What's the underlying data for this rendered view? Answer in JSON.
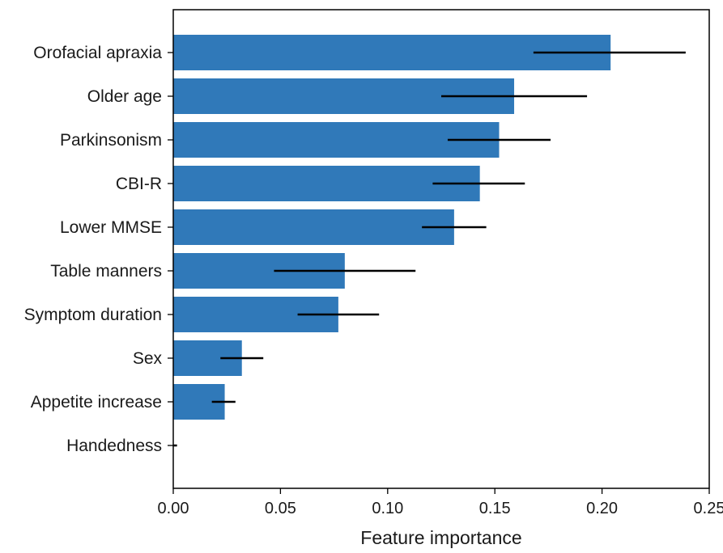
{
  "chart_data": {
    "type": "bar",
    "orientation": "horizontal",
    "title": "",
    "xlabel": "Feature importance",
    "ylabel": "",
    "xlim": [
      0,
      0.25
    ],
    "xticks": [
      "0.00",
      "0.05",
      "0.10",
      "0.15",
      "0.20",
      "0.25"
    ],
    "grid": false,
    "categories": [
      "Orofacial apraxia",
      "Older age",
      "Parkinsonism",
      "CBI-R",
      "Lower MMSE",
      "Table manners",
      "Symptom duration",
      "Sex",
      "Appetite increase",
      "Handedness"
    ],
    "values": [
      0.204,
      0.159,
      0.152,
      0.143,
      0.131,
      0.08,
      0.077,
      0.032,
      0.024,
      0.0005
    ],
    "error_low": [
      0.168,
      0.125,
      0.128,
      0.121,
      0.116,
      0.047,
      0.058,
      0.022,
      0.018,
      0.0
    ],
    "error_high": [
      0.239,
      0.193,
      0.176,
      0.164,
      0.146,
      0.113,
      0.096,
      0.042,
      0.029,
      0.001
    ],
    "colors": {
      "bar": "#3079b9",
      "error": "#000000",
      "axis": "#000000"
    }
  }
}
